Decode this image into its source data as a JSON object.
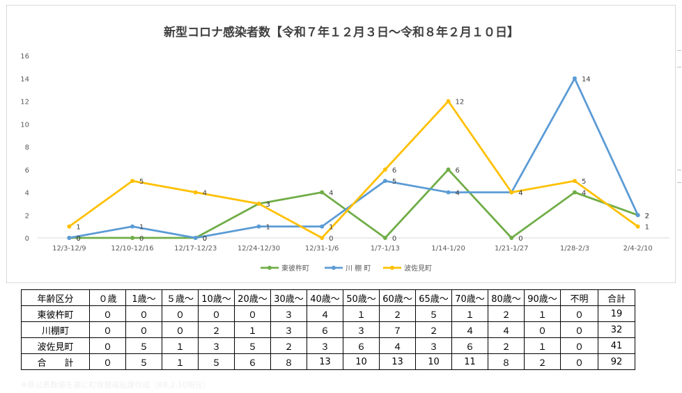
{
  "chart_data": {
    "type": "line",
    "title": "新型コロナ感染者数【令和７年１２月３日～令和８年２月１０日】",
    "categories": [
      "12/3-12/9",
      "12/10-12/16",
      "12/17-12/23",
      "12/24-12/30",
      "12/31-1/6",
      "1/7-1/13",
      "1/14-1/20",
      "1/21-1/27",
      "1/28-2/3",
      "2/4-2/10"
    ],
    "yticks": [
      "0",
      "2",
      "4",
      "6",
      "8",
      "10",
      "12",
      "14",
      "16"
    ],
    "ylim": [
      0,
      16
    ],
    "grid": false,
    "legend": "bottom",
    "series": [
      {
        "name": "東彼杵町",
        "color": "#70ad47",
        "values": [
          0,
          0,
          0,
          3,
          4,
          0,
          6,
          0,
          4,
          2
        ],
        "labels": [
          "0",
          "0",
          "0",
          "3",
          "4",
          "0",
          "6",
          "0",
          "4",
          "2"
        ]
      },
      {
        "name": "川 棚 町",
        "color": "#5b9bd5",
        "values": [
          0,
          1,
          0,
          1,
          1,
          5,
          4,
          4,
          14,
          2
        ],
        "labels": [
          "0",
          "1",
          "0",
          "1",
          "1",
          "5",
          "4",
          "4",
          "14",
          "2"
        ]
      },
      {
        "name": "波佐見町",
        "color": "#ffc000",
        "values": [
          1,
          5,
          4,
          3,
          0,
          6,
          12,
          4,
          5,
          1
        ],
        "labels": [
          "1",
          "5",
          "4",
          "3",
          "0",
          "6",
          "12",
          "4",
          "5",
          "1"
        ]
      }
    ]
  },
  "table": {
    "header": [
      "年齢区分",
      "０歳",
      "1歳～",
      "５歳～",
      "10歳～",
      "20歳～",
      "30歳～",
      "40歳～",
      "50歳～",
      "60歳～",
      "65歳～",
      "70歳～",
      "80歳～",
      "90歳～",
      "不明",
      "合計"
    ],
    "rows": [
      {
        "label": "東彼杵町",
        "cells": [
          "０",
          "０",
          "０",
          "０",
          "０",
          "３",
          "４",
          "１",
          "２",
          "５",
          "１",
          "２",
          "１",
          "０",
          "19"
        ]
      },
      {
        "label": "川棚町",
        "cells": [
          "０",
          "０",
          "０",
          "２",
          "１",
          "３",
          "６",
          "３",
          "７",
          "２",
          "４",
          "４",
          "０",
          "０",
          "32"
        ]
      },
      {
        "label": "波佐見町",
        "cells": [
          "０",
          "５",
          "１",
          "３",
          "５",
          "２",
          "３",
          "６",
          "４",
          "３",
          "６",
          "２",
          "１",
          "０",
          "41"
        ]
      },
      {
        "label": "合　　計",
        "cells": [
          "０",
          "５",
          "１",
          "５",
          "６",
          "８",
          "13",
          "10",
          "13",
          "10",
          "11",
          "８",
          "２",
          "０",
          "92"
        ]
      }
    ]
  },
  "footnote": "※県公表数値を基に町保健福祉課作成（R8.2.10現在）"
}
